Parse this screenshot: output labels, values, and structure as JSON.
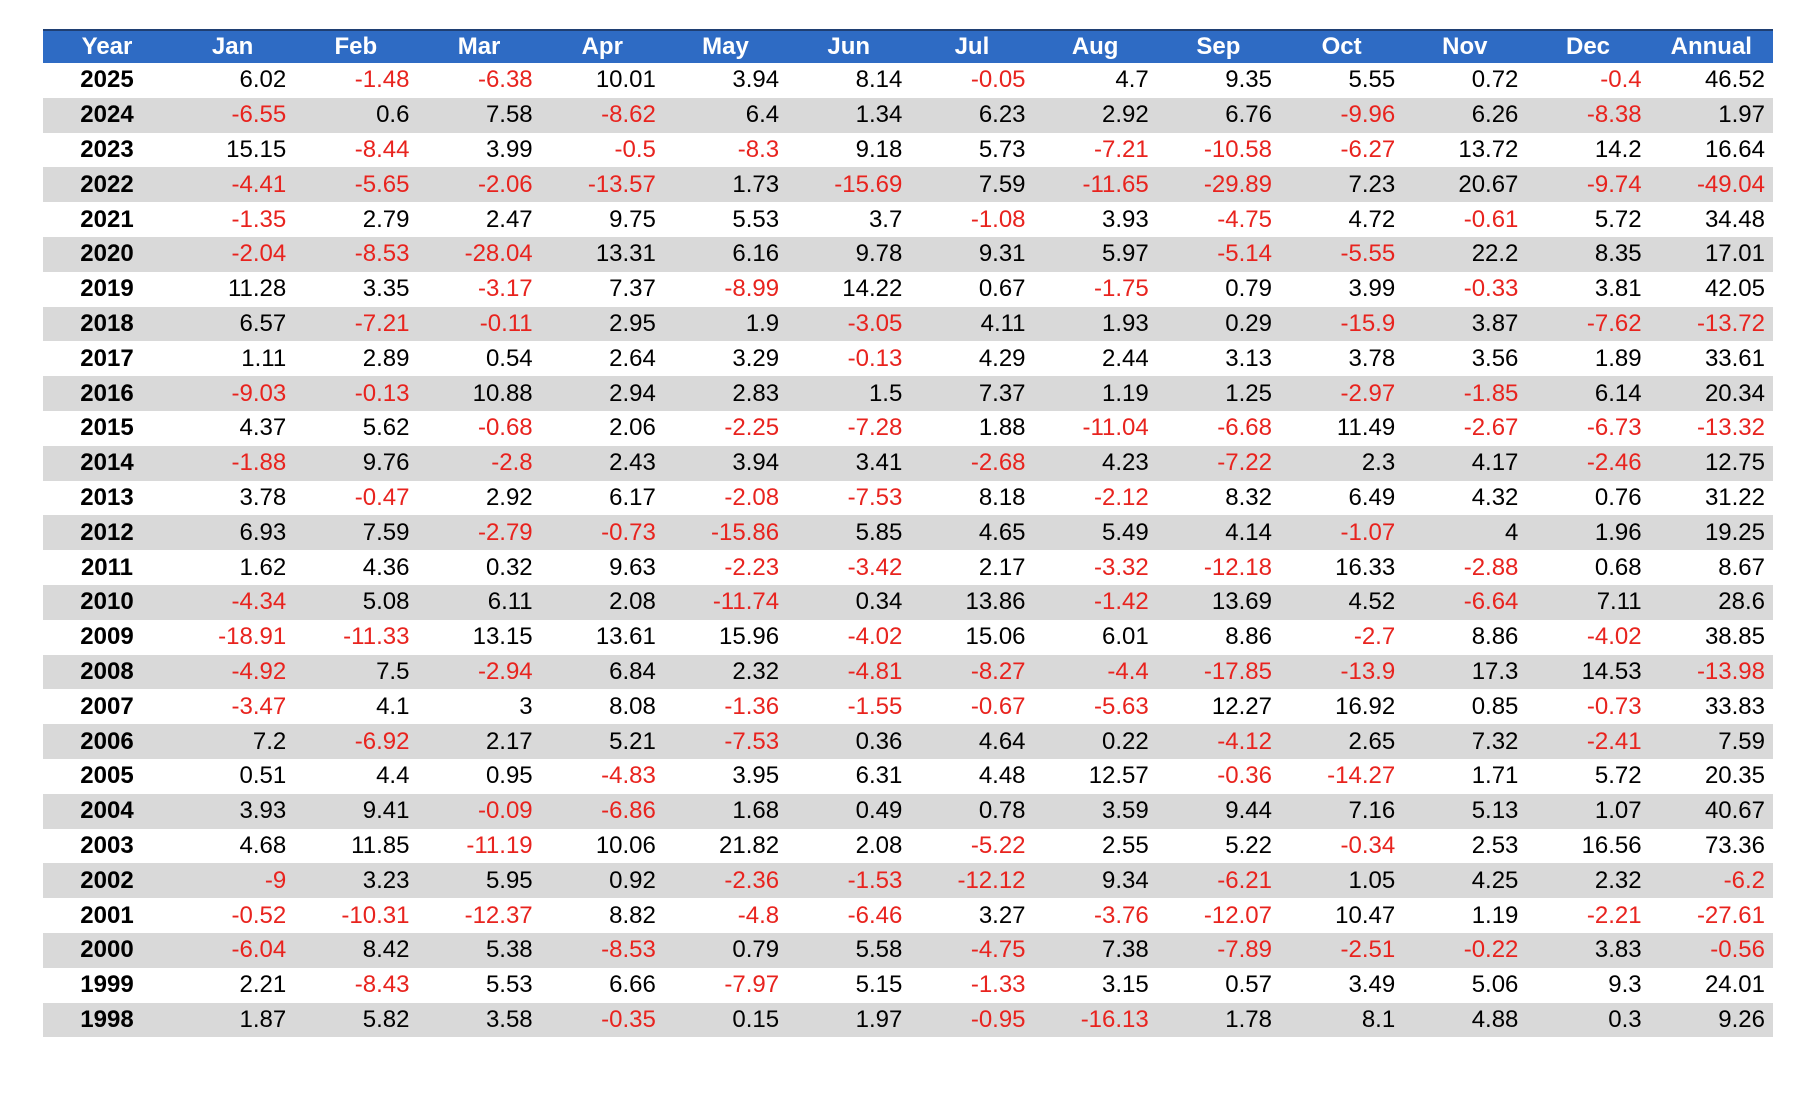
{
  "chart_data": {
    "type": "table",
    "columns": [
      "Year",
      "Jan",
      "Feb",
      "Mar",
      "Apr",
      "May",
      "Jun",
      "Jul",
      "Aug",
      "Sep",
      "Oct",
      "Nov",
      "Dec",
      "Annual"
    ],
    "rows": [
      [
        "2025",
        "6.02",
        "-1.48",
        "-6.38",
        "10.01",
        "3.94",
        "8.14",
        "-0.05",
        "4.7",
        "9.35",
        "5.55",
        "0.72",
        "-0.4",
        "46.52"
      ],
      [
        "2024",
        "-6.55",
        "0.6",
        "7.58",
        "-8.62",
        "6.4",
        "1.34",
        "6.23",
        "2.92",
        "6.76",
        "-9.96",
        "6.26",
        "-8.38",
        "1.97"
      ],
      [
        "2023",
        "15.15",
        "-8.44",
        "3.99",
        "-0.5",
        "-8.3",
        "9.18",
        "5.73",
        "-7.21",
        "-10.58",
        "-6.27",
        "13.72",
        "14.2",
        "16.64"
      ],
      [
        "2022",
        "-4.41",
        "-5.65",
        "-2.06",
        "-13.57",
        "1.73",
        "-15.69",
        "7.59",
        "-11.65",
        "-29.89",
        "7.23",
        "20.67",
        "-9.74",
        "-49.04"
      ],
      [
        "2021",
        "-1.35",
        "2.79",
        "2.47",
        "9.75",
        "5.53",
        "3.7",
        "-1.08",
        "3.93",
        "-4.75",
        "4.72",
        "-0.61",
        "5.72",
        "34.48"
      ],
      [
        "2020",
        "-2.04",
        "-8.53",
        "-28.04",
        "13.31",
        "6.16",
        "9.78",
        "9.31",
        "5.97",
        "-5.14",
        "-5.55",
        "22.2",
        "8.35",
        "17.01"
      ],
      [
        "2019",
        "11.28",
        "3.35",
        "-3.17",
        "7.37",
        "-8.99",
        "14.22",
        "0.67",
        "-1.75",
        "0.79",
        "3.99",
        "-0.33",
        "3.81",
        "42.05"
      ],
      [
        "2018",
        "6.57",
        "-7.21",
        "-0.11",
        "2.95",
        "1.9",
        "-3.05",
        "4.11",
        "1.93",
        "0.29",
        "-15.9",
        "3.87",
        "-7.62",
        "-13.72"
      ],
      [
        "2017",
        "1.11",
        "2.89",
        "0.54",
        "2.64",
        "3.29",
        "-0.13",
        "4.29",
        "2.44",
        "3.13",
        "3.78",
        "3.56",
        "1.89",
        "33.61"
      ],
      [
        "2016",
        "-9.03",
        "-0.13",
        "10.88",
        "2.94",
        "2.83",
        "1.5",
        "7.37",
        "1.19",
        "1.25",
        "-2.97",
        "-1.85",
        "6.14",
        "20.34"
      ],
      [
        "2015",
        "4.37",
        "5.62",
        "-0.68",
        "2.06",
        "-2.25",
        "-7.28",
        "1.88",
        "-11.04",
        "-6.68",
        "11.49",
        "-2.67",
        "-6.73",
        "-13.32"
      ],
      [
        "2014",
        "-1.88",
        "9.76",
        "-2.8",
        "2.43",
        "3.94",
        "3.41",
        "-2.68",
        "4.23",
        "-7.22",
        "2.3",
        "4.17",
        "-2.46",
        "12.75"
      ],
      [
        "2013",
        "3.78",
        "-0.47",
        "2.92",
        "6.17",
        "-2.08",
        "-7.53",
        "8.18",
        "-2.12",
        "8.32",
        "6.49",
        "4.32",
        "0.76",
        "31.22"
      ],
      [
        "2012",
        "6.93",
        "7.59",
        "-2.79",
        "-0.73",
        "-15.86",
        "5.85",
        "4.65",
        "5.49",
        "4.14",
        "-1.07",
        "4",
        "1.96",
        "19.25"
      ],
      [
        "2011",
        "1.62",
        "4.36",
        "0.32",
        "9.63",
        "-2.23",
        "-3.42",
        "2.17",
        "-3.32",
        "-12.18",
        "16.33",
        "-2.88",
        "0.68",
        "8.67"
      ],
      [
        "2010",
        "-4.34",
        "5.08",
        "6.11",
        "2.08",
        "-11.74",
        "0.34",
        "13.86",
        "-1.42",
        "13.69",
        "4.52",
        "-6.64",
        "7.11",
        "28.6"
      ],
      [
        "2009",
        "-18.91",
        "-11.33",
        "13.15",
        "13.61",
        "15.96",
        "-4.02",
        "15.06",
        "6.01",
        "8.86",
        "-2.7",
        "8.86",
        "-4.02",
        "38.85"
      ],
      [
        "2008",
        "-4.92",
        "7.5",
        "-2.94",
        "6.84",
        "2.32",
        "-4.81",
        "-8.27",
        "-4.4",
        "-17.85",
        "-13.9",
        "17.3",
        "14.53",
        "-13.98"
      ],
      [
        "2007",
        "-3.47",
        "4.1",
        "3",
        "8.08",
        "-1.36",
        "-1.55",
        "-0.67",
        "-5.63",
        "12.27",
        "16.92",
        "0.85",
        "-0.73",
        "33.83"
      ],
      [
        "2006",
        "7.2",
        "-6.92",
        "2.17",
        "5.21",
        "-7.53",
        "0.36",
        "4.64",
        "0.22",
        "-4.12",
        "2.65",
        "7.32",
        "-2.41",
        "7.59"
      ],
      [
        "2005",
        "0.51",
        "4.4",
        "0.95",
        "-4.83",
        "3.95",
        "6.31",
        "4.48",
        "12.57",
        "-0.36",
        "-14.27",
        "1.71",
        "5.72",
        "20.35"
      ],
      [
        "2004",
        "3.93",
        "9.41",
        "-0.09",
        "-6.86",
        "1.68",
        "0.49",
        "0.78",
        "3.59",
        "9.44",
        "7.16",
        "5.13",
        "1.07",
        "40.67"
      ],
      [
        "2003",
        "4.68",
        "11.85",
        "-11.19",
        "10.06",
        "21.82",
        "2.08",
        "-5.22",
        "2.55",
        "5.22",
        "-0.34",
        "2.53",
        "16.56",
        "73.36"
      ],
      [
        "2002",
        "-9",
        "3.23",
        "5.95",
        "0.92",
        "-2.36",
        "-1.53",
        "-12.12",
        "9.34",
        "-6.21",
        "1.05",
        "4.25",
        "2.32",
        "-6.2"
      ],
      [
        "2001",
        "-0.52",
        "-10.31",
        "-12.37",
        "8.82",
        "-4.8",
        "-6.46",
        "3.27",
        "-3.76",
        "-12.07",
        "10.47",
        "1.19",
        "-2.21",
        "-27.61"
      ],
      [
        "2000",
        "-6.04",
        "8.42",
        "5.38",
        "-8.53",
        "0.79",
        "5.58",
        "-4.75",
        "7.38",
        "-7.89",
        "-2.51",
        "-0.22",
        "3.83",
        "-0.56"
      ],
      [
        "1999",
        "2.21",
        "-8.43",
        "5.53",
        "6.66",
        "-7.97",
        "5.15",
        "-1.33",
        "3.15",
        "0.57",
        "3.49",
        "5.06",
        "9.3",
        "24.01"
      ],
      [
        "1998",
        "1.87",
        "5.82",
        "3.58",
        "-0.35",
        "0.15",
        "1.97",
        "-0.95",
        "-16.13",
        "1.78",
        "8.1",
        "4.88",
        "0.3",
        "9.26"
      ]
    ],
    "colors": {
      "header_bg": "#2e6bc4",
      "header_text": "#ffffff",
      "row_stripe": "#d9d9d9",
      "negative": "#e8231e",
      "positive": "#000000"
    }
  }
}
